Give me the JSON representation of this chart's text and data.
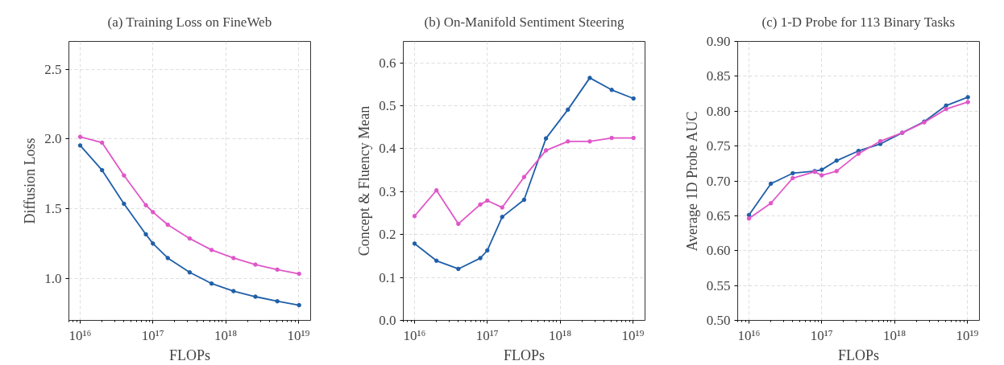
{
  "chart_data": [
    {
      "type": "line",
      "title": "(a) Training Loss on FineWeb",
      "xlabel": "FLOPs",
      "ylabel": "Diffusion Loss",
      "log": "x",
      "grid": true,
      "marker": "circle",
      "line_style": "solid",
      "xlim": [
        7000000000000000.0,
        1.47e+19
      ],
      "xticks": [
        {
          "value": 1e+16,
          "label": "10¹⁶"
        },
        {
          "value": 1e+17,
          "label": "10¹⁷"
        },
        {
          "value": 1e+18,
          "label": "10¹⁸"
        },
        {
          "value": 1e+19,
          "label": "10¹⁹"
        }
      ],
      "ylim": [
        0.7,
        2.7
      ],
      "yticks": [
        {
          "value": 1.0,
          "label": "1.0"
        },
        {
          "value": 1.5,
          "label": "1.5"
        },
        {
          "value": 2.0,
          "label": "2.0"
        },
        {
          "value": 2.5,
          "label": "2.5"
        }
      ],
      "x": [
        1e+16,
        2e+16,
        4e+16,
        8e+16,
        1e+17,
        1.6e+17,
        3.2e+17,
        6.4e+17,
        1.28e+18,
        2.56e+18,
        5.12e+18,
        1.02e+19
      ],
      "series": [
        {
          "color": "#1f5fa8",
          "values": [
            1.954,
            1.777,
            1.536,
            1.317,
            1.251,
            1.147,
            1.044,
            0.964,
            0.91,
            0.87,
            0.837,
            0.809
          ]
        },
        {
          "color": "#e056c8",
          "values": [
            2.016,
            1.974,
            1.739,
            1.526,
            1.476,
            1.386,
            1.287,
            1.205,
            1.147,
            1.1,
            1.064,
            1.034
          ]
        }
      ]
    },
    {
      "type": "line",
      "title": "(b) On-Manifold Sentiment Steering",
      "xlabel": "FLOPs",
      "ylabel": "Concept & Fluency Mean",
      "log": "x",
      "grid": true,
      "marker": "circle",
      "line_style": "solid",
      "xlim": [
        7000000000000000.0,
        1.47e+19
      ],
      "xticks": [
        {
          "value": 1e+16,
          "label": "10¹⁶"
        },
        {
          "value": 1e+17,
          "label": "10¹⁷"
        },
        {
          "value": 1e+18,
          "label": "10¹⁸"
        },
        {
          "value": 1e+19,
          "label": "10¹⁹"
        }
      ],
      "ylim": [
        0,
        0.65
      ],
      "yticks": [
        {
          "value": 0,
          "label": "0.0"
        },
        {
          "value": 0.1,
          "label": "0.1"
        },
        {
          "value": 0.2,
          "label": "0.2"
        },
        {
          "value": 0.3,
          "label": "0.3"
        },
        {
          "value": 0.4,
          "label": "0.4"
        },
        {
          "value": 0.5,
          "label": "0.5"
        },
        {
          "value": 0.6,
          "label": "0.6"
        }
      ],
      "x": [
        1e+16,
        2e+16,
        4e+16,
        8e+16,
        1e+17,
        1.6e+17,
        3.2e+17,
        6.4e+17,
        1.28e+18,
        2.56e+18,
        5.12e+18,
        1.02e+19
      ],
      "series": [
        {
          "color": "#1f5fa8",
          "values": [
            0.179,
            0.139,
            0.12,
            0.145,
            0.163,
            0.241,
            0.281,
            0.424,
            0.491,
            0.565,
            0.537,
            0.517
          ]
        },
        {
          "color": "#e056c8",
          "values": [
            0.243,
            0.303,
            0.225,
            0.27,
            0.279,
            0.263,
            0.334,
            0.396,
            0.417,
            0.417,
            0.425,
            0.425
          ]
        }
      ]
    },
    {
      "type": "line",
      "title": "(c) 1-D Probe for 113 Binary Tasks",
      "xlabel": "FLOPs",
      "ylabel": "Average 1D Probe AUC",
      "log": "x",
      "grid": true,
      "marker": "circle",
      "line_style": "solid",
      "xlim": [
        7000000000000000.0,
        1.47e+19
      ],
      "xticks": [
        {
          "value": 1e+16,
          "label": "10¹⁶"
        },
        {
          "value": 1e+17,
          "label": "10¹⁷"
        },
        {
          "value": 1e+18,
          "label": "10¹⁸"
        },
        {
          "value": 1e+19,
          "label": "10¹⁹"
        }
      ],
      "ylim": [
        0.5,
        0.9
      ],
      "yticks": [
        {
          "value": 0.5,
          "label": "0.50"
        },
        {
          "value": 0.55,
          "label": "0.55"
        },
        {
          "value": 0.6,
          "label": "0.60"
        },
        {
          "value": 0.65,
          "label": "0.65"
        },
        {
          "value": 0.7,
          "label": "0.70"
        },
        {
          "value": 0.75,
          "label": "0.75"
        },
        {
          "value": 0.8,
          "label": "0.80"
        },
        {
          "value": 0.85,
          "label": "0.85"
        },
        {
          "value": 0.9,
          "label": "0.90"
        }
      ],
      "x": [
        1e+16,
        2e+16,
        4e+16,
        8e+16,
        1e+17,
        1.6e+17,
        3.2e+17,
        6.4e+17,
        1.28e+18,
        2.56e+18,
        5.12e+18,
        1.02e+19
      ],
      "series": [
        {
          "color": "#1f5fa8",
          "values": [
            0.651,
            0.696,
            0.711,
            0.714,
            0.716,
            0.729,
            0.743,
            0.753,
            0.769,
            0.785,
            0.808,
            0.82
          ]
        },
        {
          "color": "#e056c8",
          "values": [
            0.646,
            0.668,
            0.704,
            0.713,
            0.708,
            0.714,
            0.739,
            0.757,
            0.769,
            0.784,
            0.803,
            0.813
          ]
        }
      ]
    }
  ]
}
